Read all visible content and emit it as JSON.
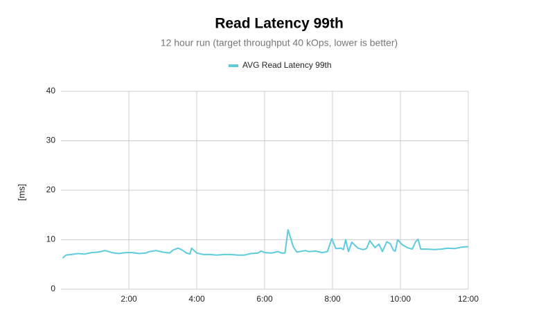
{
  "chart_data": {
    "type": "line",
    "title": "Read Latency 99th",
    "subtitle": "12 hour run (target throughput 40 kOps, lower is better)",
    "y_label": "[ms]",
    "x": [
      0.05,
      0.15,
      0.3,
      0.5,
      0.7,
      0.9,
      1.1,
      1.3,
      1.5,
      1.7,
      1.9,
      2.1,
      2.3,
      2.5,
      2.6,
      2.8,
      3.0,
      3.2,
      3.3,
      3.45,
      3.55,
      3.7,
      3.8,
      3.85,
      4.0,
      4.2,
      4.4,
      4.6,
      4.8,
      5.0,
      5.2,
      5.4,
      5.6,
      5.8,
      5.9,
      6.0,
      6.2,
      6.4,
      6.5,
      6.6,
      6.69,
      6.85,
      6.95,
      7.2,
      7.3,
      7.5,
      7.7,
      7.85,
      7.98,
      8.1,
      8.25,
      8.32,
      8.39,
      8.47,
      8.57,
      8.75,
      8.9,
      9.0,
      9.1,
      9.25,
      9.37,
      9.47,
      9.6,
      9.7,
      9.8,
      9.85,
      9.92,
      10.05,
      10.2,
      10.35,
      10.45,
      10.52,
      10.6,
      10.8,
      11.0,
      11.2,
      11.4,
      11.6,
      11.8,
      12.0
    ],
    "series": [
      {
        "name": "AVG Read Latency 99th",
        "color": "#5bcbe0",
        "values": [
          6.3,
          6.9,
          7.0,
          7.2,
          7.1,
          7.4,
          7.5,
          7.8,
          7.4,
          7.2,
          7.4,
          7.4,
          7.2,
          7.3,
          7.6,
          7.8,
          7.5,
          7.3,
          7.9,
          8.3,
          8.0,
          7.3,
          7.1,
          8.3,
          7.3,
          7.0,
          7.0,
          6.9,
          7.0,
          7.0,
          6.9,
          6.9,
          7.2,
          7.3,
          7.7,
          7.4,
          7.3,
          7.6,
          7.3,
          7.3,
          12.0,
          8.5,
          7.5,
          7.8,
          7.6,
          7.7,
          7.4,
          7.6,
          10.2,
          8.2,
          8.3,
          8.0,
          10.0,
          7.6,
          9.5,
          8.3,
          8.0,
          8.2,
          9.8,
          8.4,
          9.1,
          7.6,
          9.6,
          9.2,
          7.8,
          7.7,
          10.0,
          9.0,
          8.4,
          8.1,
          9.6,
          10.1,
          8.1,
          8.1,
          8.0,
          8.1,
          8.3,
          8.2,
          8.5,
          8.6
        ]
      }
    ],
    "xlim": [
      0,
      12
    ],
    "xticks": [
      {
        "value": 2,
        "label": "2:00"
      },
      {
        "value": 4,
        "label": "4:00"
      },
      {
        "value": 6,
        "label": "6:00"
      },
      {
        "value": 8,
        "label": "8:00"
      },
      {
        "value": 10,
        "label": "10:00"
      },
      {
        "value": 12,
        "label": "12:00"
      }
    ],
    "ylim": [
      0,
      40
    ],
    "yticks": [
      0,
      10,
      20,
      30,
      40
    ],
    "grid": true
  }
}
